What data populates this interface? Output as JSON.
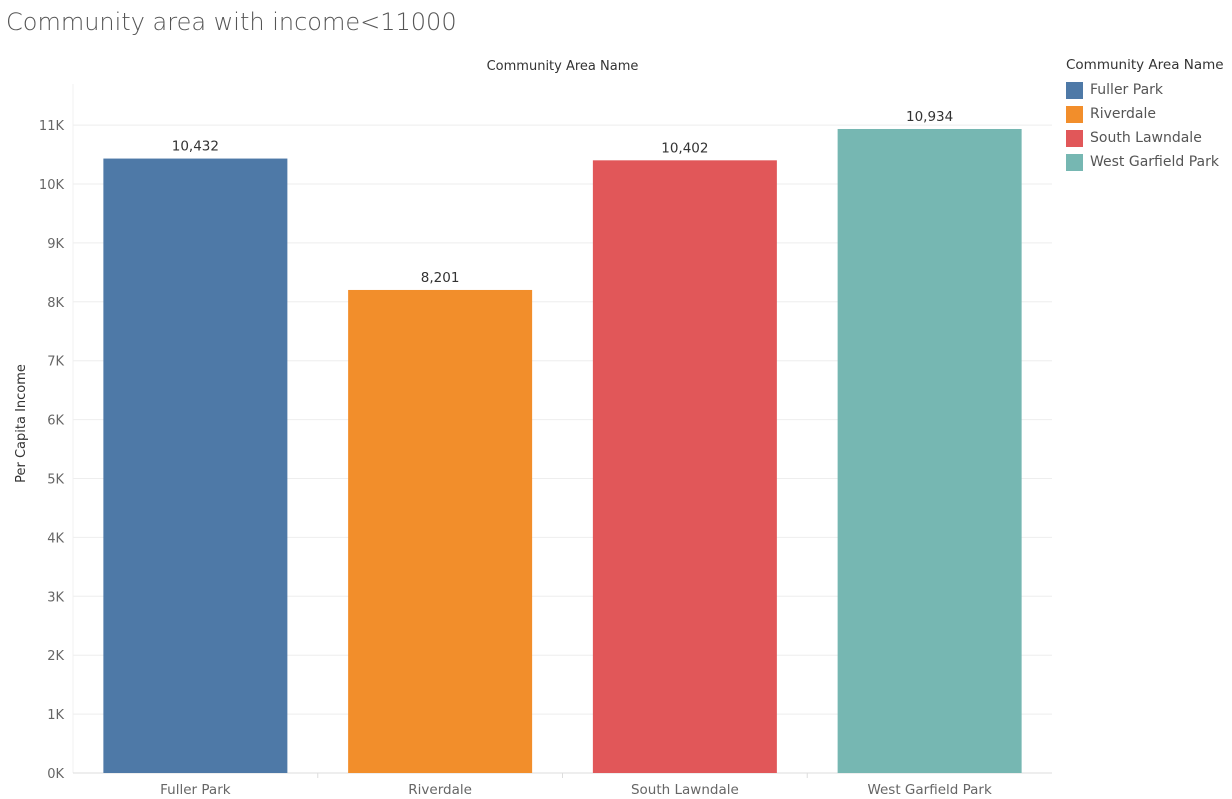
{
  "chart_data": {
    "type": "bar",
    "title": "Community area with income<11000",
    "column_header": "Community Area Name",
    "ylabel": "Per Capita Income",
    "xlabel": "",
    "categories": [
      "Fuller Park",
      "Riverdale",
      "South Lawndale",
      "West Garfield Park"
    ],
    "values": [
      10432,
      8201,
      10402,
      10934
    ],
    "value_labels": [
      "10,432",
      "8,201",
      "10,402",
      "10,934"
    ],
    "colors": [
      "#4e79a7",
      "#f28e2b",
      "#e15759",
      "#76b7b2"
    ],
    "ylim": [
      0,
      11000
    ],
    "yticks": [
      0,
      1000,
      2000,
      3000,
      4000,
      5000,
      6000,
      7000,
      8000,
      9000,
      10000,
      11000
    ],
    "ytick_labels": [
      "0K",
      "1K",
      "2K",
      "3K",
      "4K",
      "5K",
      "6K",
      "7K",
      "8K",
      "9K",
      "10K",
      "11K"
    ],
    "grid": true,
    "legend": {
      "title": "Community Area Name",
      "placement": "right",
      "items": [
        "Fuller Park",
        "Riverdale",
        "South Lawndale",
        "West Garfield Park"
      ]
    }
  }
}
